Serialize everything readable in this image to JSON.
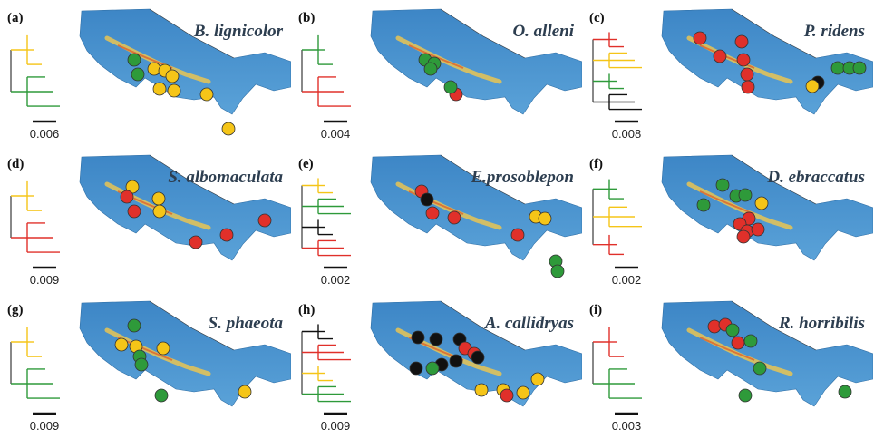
{
  "panels": [
    {
      "label": "(a)",
      "species": "B. lignicolor",
      "scale": "0.006"
    },
    {
      "label": "(b)",
      "species": "O. alleni",
      "scale": "0.004"
    },
    {
      "label": "(c)",
      "species": "P. ridens",
      "scale": "0.008"
    },
    {
      "label": "(d)",
      "species": "S. albomaculata",
      "scale": "0.009"
    },
    {
      "label": "(e)",
      "species": "E.prosoblepon",
      "scale": "0.002"
    },
    {
      "label": "(f)",
      "species": "D. ebraccatus",
      "scale": "0.002"
    },
    {
      "label": "(g)",
      "species": "S. phaeota",
      "scale": "0.009"
    },
    {
      "label": "(h)",
      "species": "A. callidryas",
      "scale": "0.009"
    },
    {
      "label": "(i)",
      "species": "R. horribilis",
      "scale": "0.003"
    }
  ]
}
